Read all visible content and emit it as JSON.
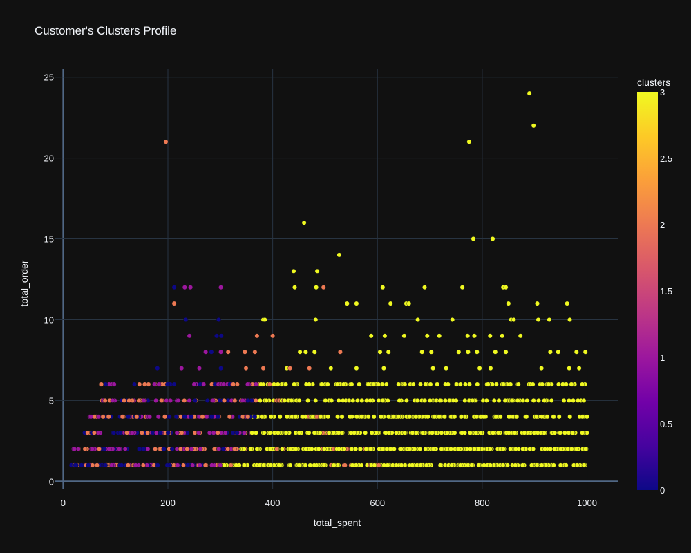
{
  "chart_data": {
    "type": "scatter",
    "title": "Customer's Clusters Profile",
    "xlabel": "total_spent",
    "ylabel": "total_order",
    "xlim": [
      -15,
      1060
    ],
    "ylim": [
      -0.5,
      25.5
    ],
    "x_ticks": [
      0,
      200,
      400,
      600,
      800,
      1000
    ],
    "y_ticks": [
      0,
      5,
      10,
      15,
      20,
      25
    ],
    "x_tick_labels": [
      "0",
      "200",
      "400",
      "600",
      "800",
      "1000"
    ],
    "y_tick_labels": [
      "0",
      "5",
      "10",
      "15",
      "20",
      "25"
    ],
    "grid": true,
    "colorbar": {
      "title": "clusters",
      "range": [
        0,
        3
      ],
      "ticks": [
        0,
        0.5,
        1,
        1.5,
        2,
        2.5,
        3
      ],
      "tick_labels": [
        "0",
        "0.5",
        "1",
        "1.5",
        "2",
        "2.5",
        "3"
      ],
      "colorscale": [
        "#0d0887",
        "#46039f",
        "#7201a8",
        "#9c179e",
        "#bd3786",
        "#d8576b",
        "#ed7953",
        "#fb9f3a",
        "#fdca26",
        "#f0f921"
      ]
    },
    "points": [
      [
        890,
        24,
        3
      ],
      [
        898,
        22,
        3
      ],
      [
        775,
        21,
        3
      ],
      [
        196,
        21,
        2
      ],
      [
        460,
        16,
        3
      ],
      [
        783,
        15,
        3
      ],
      [
        820,
        15,
        3
      ],
      [
        527,
        14,
        3
      ],
      [
        440,
        13,
        3
      ],
      [
        485,
        13,
        3
      ],
      [
        442,
        12,
        3
      ],
      [
        483,
        12,
        3
      ],
      [
        497,
        12,
        2
      ],
      [
        610,
        12,
        3
      ],
      [
        690,
        12,
        3
      ],
      [
        762,
        12,
        3
      ],
      [
        840,
        12,
        3
      ],
      [
        845,
        12,
        3
      ],
      [
        212,
        12,
        0
      ],
      [
        232,
        12,
        1
      ],
      [
        243,
        12,
        1
      ],
      [
        301,
        12,
        1
      ],
      [
        212,
        11,
        2
      ],
      [
        542,
        11,
        3
      ],
      [
        560,
        11,
        3
      ],
      [
        625,
        11,
        3
      ],
      [
        655,
        11,
        3
      ],
      [
        660,
        11,
        3
      ],
      [
        850,
        11,
        3
      ],
      [
        905,
        11,
        3
      ],
      [
        962,
        11,
        3
      ],
      [
        234,
        10,
        0
      ],
      [
        297,
        10,
        0
      ],
      [
        382,
        10,
        3
      ],
      [
        385,
        10,
        3
      ],
      [
        482,
        10,
        3
      ],
      [
        677,
        10,
        3
      ],
      [
        743,
        10,
        3
      ],
      [
        855,
        10,
        3
      ],
      [
        860,
        10,
        3
      ],
      [
        907,
        10,
        3
      ],
      [
        928,
        10,
        3
      ],
      [
        967,
        10,
        3
      ],
      [
        241,
        9,
        1
      ],
      [
        293,
        9,
        0
      ],
      [
        302,
        9,
        0
      ],
      [
        370,
        9,
        2
      ],
      [
        400,
        9,
        2
      ],
      [
        588,
        9,
        3
      ],
      [
        614,
        9,
        3
      ],
      [
        651,
        9,
        3
      ],
      [
        695,
        9,
        3
      ],
      [
        718,
        9,
        3
      ],
      [
        772,
        9,
        3
      ],
      [
        785,
        9,
        3
      ],
      [
        815,
        9,
        3
      ],
      [
        838,
        9,
        3
      ],
      [
        873,
        9,
        3
      ],
      [
        272,
        8,
        1
      ],
      [
        283,
        8,
        0
      ],
      [
        301,
        8,
        1
      ],
      [
        315,
        8,
        2
      ],
      [
        347,
        8,
        2
      ],
      [
        366,
        8,
        2
      ],
      [
        452,
        8,
        3
      ],
      [
        463,
        8,
        3
      ],
      [
        480,
        8,
        3
      ],
      [
        529,
        8,
        2
      ],
      [
        605,
        8,
        3
      ],
      [
        621,
        8,
        3
      ],
      [
        685,
        8,
        3
      ],
      [
        703,
        8,
        3
      ],
      [
        755,
        8,
        3
      ],
      [
        773,
        8,
        3
      ],
      [
        790,
        8,
        3
      ],
      [
        825,
        8,
        3
      ],
      [
        845,
        8,
        3
      ],
      [
        930,
        8,
        3
      ],
      [
        945,
        8,
        3
      ],
      [
        980,
        8,
        3
      ],
      [
        997,
        8,
        3
      ],
      [
        180,
        7,
        0
      ],
      [
        226,
        7,
        1
      ],
      [
        260,
        7,
        1
      ],
      [
        301,
        7,
        0
      ],
      [
        349,
        7,
        2
      ],
      [
        382,
        7,
        2
      ],
      [
        427,
        7,
        3
      ],
      [
        433,
        7,
        2
      ],
      [
        470,
        7,
        2
      ],
      [
        511,
        7,
        3
      ],
      [
        560,
        7,
        3
      ],
      [
        612,
        7,
        3
      ],
      [
        706,
        7,
        3
      ],
      [
        731,
        7,
        3
      ],
      [
        795,
        7,
        3
      ],
      [
        816,
        7,
        3
      ],
      [
        913,
        7,
        3
      ],
      [
        966,
        7,
        3
      ],
      [
        985,
        7,
        3
      ]
    ],
    "dense_bands": [
      {
        "y": 1,
        "x_min": 15,
        "x_max": 1000,
        "c0_max": 380,
        "c1_max": 370,
        "c2_max": 610,
        "c3_min": 300,
        "n": 340
      },
      {
        "y": 2,
        "x_min": 20,
        "x_max": 1000,
        "c0_max": 400,
        "c1_max": 380,
        "c2_max": 580,
        "c3_min": 340,
        "n": 300
      },
      {
        "y": 3,
        "x_min": 35,
        "x_max": 1000,
        "c0_max": 390,
        "c1_max": 380,
        "c2_max": 520,
        "c3_min": 360,
        "n": 260
      },
      {
        "y": 4,
        "x_min": 50,
        "x_max": 1000,
        "c0_max": 400,
        "c1_max": 390,
        "c2_max": 500,
        "c3_min": 360,
        "n": 220
      },
      {
        "y": 5,
        "x_min": 60,
        "x_max": 1000,
        "c0_max": 380,
        "c1_max": 390,
        "c2_max": 480,
        "c3_min": 370,
        "n": 180
      },
      {
        "y": 6,
        "x_min": 70,
        "x_max": 1000,
        "c0_max": 320,
        "c1_max": 390,
        "c2_max": 440,
        "c3_min": 370,
        "n": 150
      }
    ]
  }
}
